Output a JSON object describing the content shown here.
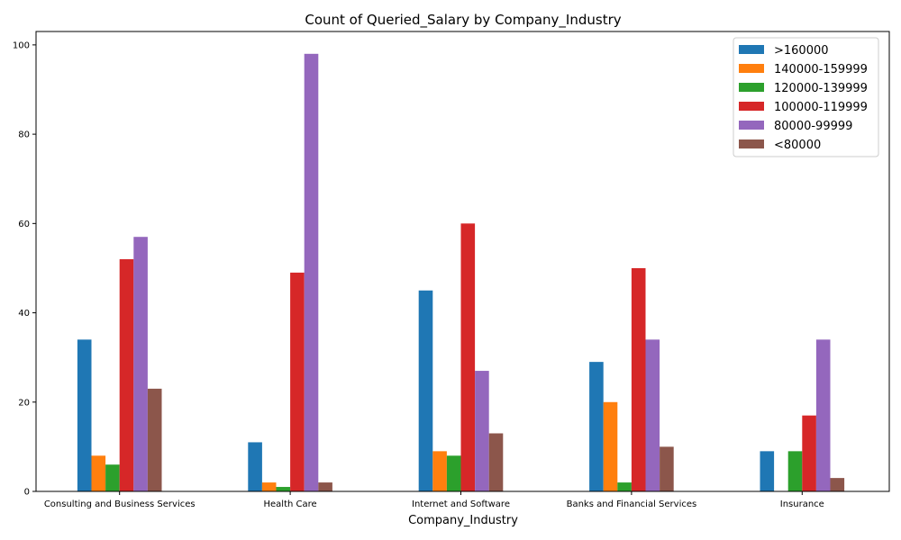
{
  "chart_data": {
    "type": "bar",
    "title": "Count of Queried_Salary by Company_Industry",
    "xlabel": "Company_Industry",
    "ylabel": "",
    "ylim": [
      0,
      103
    ],
    "yticks": [
      0,
      20,
      40,
      60,
      80,
      100
    ],
    "categories": [
      "Consulting and Business Services",
      "Health Care",
      "Internet and Software",
      "Banks and Financial Services",
      "Insurance"
    ],
    "series": [
      {
        "name": ">160000",
        "color": "#1f77b4",
        "values": [
          34,
          11,
          45,
          29,
          9
        ]
      },
      {
        "name": "140000-159999",
        "color": "#ff7f0e",
        "values": [
          8,
          2,
          9,
          20,
          0
        ]
      },
      {
        "name": "120000-139999",
        "color": "#2ca02c",
        "values": [
          6,
          1,
          8,
          2,
          9
        ]
      },
      {
        "name": "100000-119999",
        "color": "#d62728",
        "values": [
          52,
          49,
          60,
          50,
          17
        ]
      },
      {
        "name": "80000-99999",
        "color": "#9467bd",
        "values": [
          57,
          98,
          27,
          34,
          34
        ]
      },
      {
        "name": "<80000",
        "color": "#8c564b",
        "values": [
          23,
          2,
          13,
          10,
          3
        ]
      }
    ],
    "grid": false,
    "legend_position": "top-right"
  }
}
